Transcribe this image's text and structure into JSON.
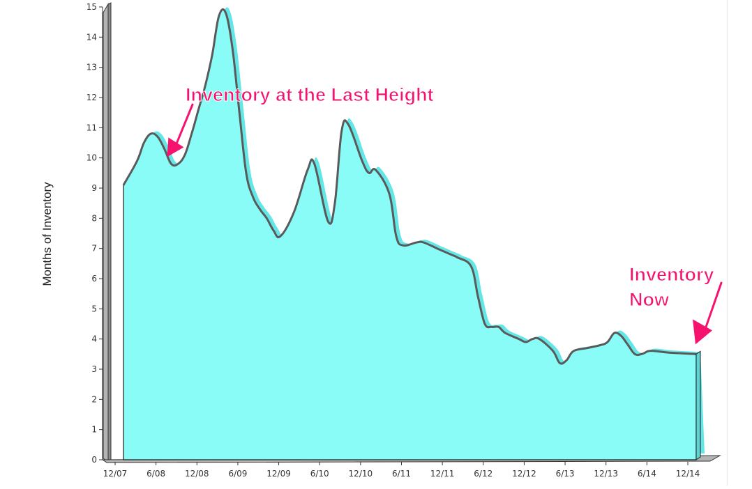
{
  "chart_data": {
    "type": "area",
    "ylabel": "Months of Inventory",
    "xlabel": "",
    "ylim": [
      0,
      15
    ],
    "y_ticks": [
      "0",
      "1",
      "2",
      "3",
      "4",
      "5",
      "6",
      "7",
      "8",
      "9",
      "10",
      "11",
      "12",
      "13",
      "14",
      "15"
    ],
    "x_ticks": [
      "12/07",
      "6/08",
      "12/08",
      "6/09",
      "12/09",
      "6/10",
      "12/10",
      "6/11",
      "12/11",
      "6/12",
      "12/12",
      "6/13",
      "12/13",
      "6/14",
      "12/14"
    ],
    "x_start_month_index": 0,
    "x_end_month_index": 84,
    "grid": false,
    "series": [
      {
        "values": [
          9.1,
          9.9,
          10.5,
          10.8,
          10.7,
          10.3,
          9.8,
          9.8,
          10.1,
          10.8,
          11.6,
          12.4,
          13.4,
          14.7,
          14.8,
          13.6,
          11.5,
          9.5,
          8.7,
          8.3,
          8.0,
          7.6,
          7.4,
          8.2,
          9.6,
          9.8,
          7.9,
          8.5,
          10.9,
          11.1,
          9.9,
          9.5,
          9.6,
          8.8,
          7.4,
          7.1,
          7.2,
          7.2,
          7.0,
          6.8,
          6.7,
          6.4,
          5.4,
          4.5,
          4.4,
          4.4,
          4.2,
          4.0,
          3.9,
          4.0,
          4.0,
          3.6,
          3.2,
          3.3,
          3.6,
          3.7,
          3.8,
          3.9,
          4.2,
          4.1,
          3.8,
          3.5,
          3.5,
          3.6,
          3.6,
          3.55,
          3.5
        ],
        "value_month_indices": [
          0,
          2,
          3,
          4,
          5,
          6,
          7,
          8,
          9,
          10,
          11,
          12,
          13,
          14,
          15,
          16,
          17,
          18,
          19,
          20,
          21,
          22,
          23,
          25,
          27,
          28,
          30,
          31,
          32,
          33,
          35,
          36,
          37,
          39,
          40,
          41,
          43,
          44,
          46,
          48,
          49,
          51,
          52,
          53,
          54,
          55,
          56,
          58,
          59,
          60,
          61,
          63,
          64,
          65,
          66,
          68,
          70,
          71,
          72,
          73,
          74,
          75,
          76,
          77,
          78,
          80,
          84
        ],
        "fill_color": "#8afcf8",
        "line_color": "#5a5a5a"
      }
    ],
    "annotations": [
      {
        "text": "Inventory at the Last Height",
        "target_month_index": 7,
        "target_value": 9.8
      },
      {
        "text_lines": [
          "Inventory",
          "Now"
        ],
        "target_month_index": 84,
        "target_value": 3.5
      }
    ],
    "colors": {
      "area_fill": "#8afcf8",
      "area_highlight": "#62e6e6",
      "line": "#5a5a5a",
      "callout": "#f5136f",
      "axis_wall": "#b4b4b4",
      "axis_text": "#333333",
      "page_rule": "#e6e6e6"
    }
  }
}
